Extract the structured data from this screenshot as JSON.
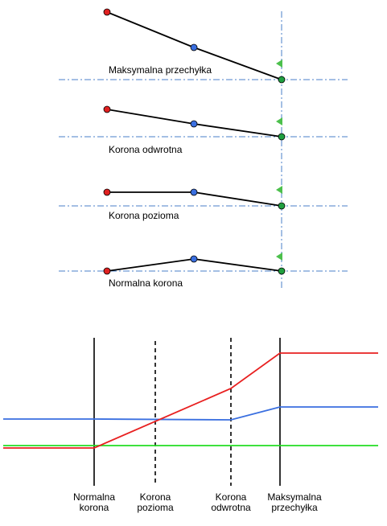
{
  "profiles": [
    {
      "label": "Maksymalna przechyłka"
    },
    {
      "label": "Korona odwrotna"
    },
    {
      "label": "Korona pozioma"
    },
    {
      "label": "Normalna korona"
    }
  ],
  "stations": [
    {
      "line1": "Normalna",
      "line2": "korona"
    },
    {
      "line1": "Korona",
      "line2": "pozioma"
    },
    {
      "line1": "Korona",
      "line2": "odwrotna"
    },
    {
      "line1": "Maksymalna",
      "line2": "przechyłka"
    }
  ],
  "colors": {
    "outer_point": "#e02020",
    "middle_point": "#3a6fe0",
    "pivot_point": "#20a040",
    "flag": "#4cc04c",
    "grade_line": "#4a7fc8",
    "red_series": "#e82020",
    "blue_series": "#3a6fe0",
    "green_series": "#22dd22"
  }
}
